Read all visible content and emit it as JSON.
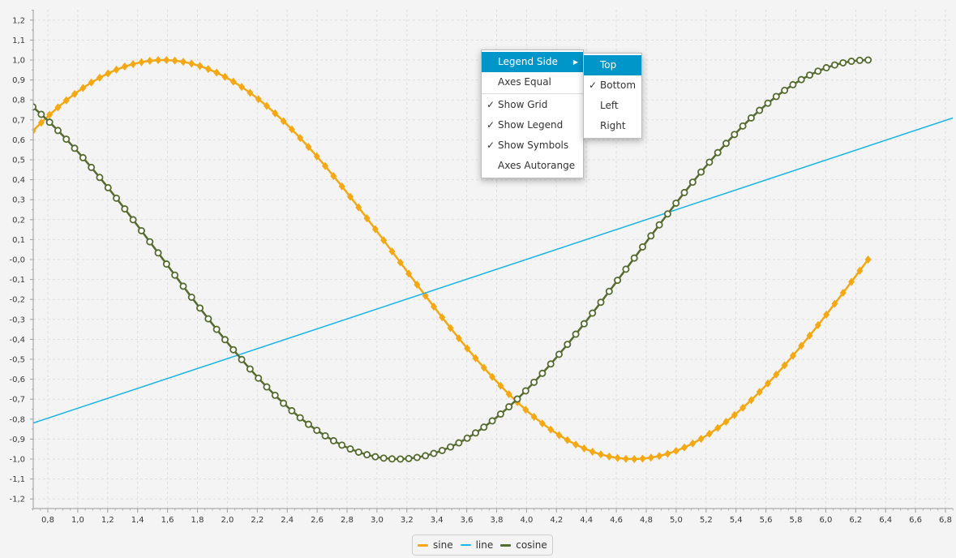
{
  "chart_data": {
    "type": "line",
    "x_range": [
      0.7,
      6.85
    ],
    "y_range": [
      -1.25,
      1.25
    ],
    "xlim": [
      0.7,
      6.85
    ],
    "ylim": [
      -1.25,
      1.25
    ],
    "x_tick_labels": [
      "0,8",
      "1,0",
      "1,2",
      "1,4",
      "1,6",
      "1,8",
      "2,0",
      "2,2",
      "2,4",
      "2,6",
      "2,8",
      "3,0",
      "3,2",
      "3,4",
      "3,6",
      "3,8",
      "4,0",
      "4,2",
      "4,4",
      "4,6",
      "4,8",
      "5,0",
      "5,2",
      "5,4",
      "5,6",
      "5,8",
      "6,0",
      "6,2",
      "6,4",
      "6,6",
      "6,8"
    ],
    "y_tick_labels": [
      "1,2",
      "1,1",
      "1,0",
      "0,9",
      "0,8",
      "0,7",
      "0,6",
      "0,5",
      "0,4",
      "0,3",
      "0,2",
      "0,1",
      "-0,0",
      "-0,1",
      "-0,2",
      "-0,3",
      "-0,4",
      "-0,5",
      "-0,6",
      "-0,7",
      "-0,8",
      "-0,9",
      "-1,0",
      "-1,1",
      "-1,2"
    ],
    "grid": true,
    "legend_position": "bottom",
    "series": [
      {
        "name": "sine",
        "function": "sin(x)",
        "x_start": 0.7,
        "x_end": 6.283,
        "points": 101,
        "color": "#f3a814",
        "marker": "diamond-filled"
      },
      {
        "name": "line",
        "x": [
          0.7,
          6.85
        ],
        "y": [
          -0.82,
          0.71
        ],
        "color": "#1bb6e6",
        "marker": "none"
      },
      {
        "name": "cosine",
        "function": "cos(x)",
        "x_start": 0.7,
        "x_end": 6.283,
        "points": 101,
        "color": "#556b2f",
        "marker": "circle-hollow"
      }
    ]
  },
  "legend": [
    {
      "label": "sine",
      "color": "#f3a814"
    },
    {
      "label": "line",
      "color": "#1bb6e6"
    },
    {
      "label": "cosine",
      "color": "#556b2f"
    }
  ],
  "context_menu": {
    "items": [
      {
        "label": "Legend Side",
        "checked": false,
        "has_submenu": true,
        "highlighted": true
      },
      {
        "label": "Axes Equal",
        "checked": false
      },
      {
        "label": "Show Grid",
        "checked": true
      },
      {
        "label": "Show Legend",
        "checked": true
      },
      {
        "label": "Show Symbols",
        "checked": true
      },
      {
        "label": "Axes Autorange",
        "checked": false
      }
    ],
    "submenu": [
      {
        "label": "Top",
        "checked": false,
        "highlighted": true
      },
      {
        "label": "Bottom",
        "checked": true
      },
      {
        "label": "Left",
        "checked": false
      },
      {
        "label": "Right",
        "checked": false
      }
    ],
    "check_glyph": "✓",
    "arrow_glyph": "▶"
  }
}
